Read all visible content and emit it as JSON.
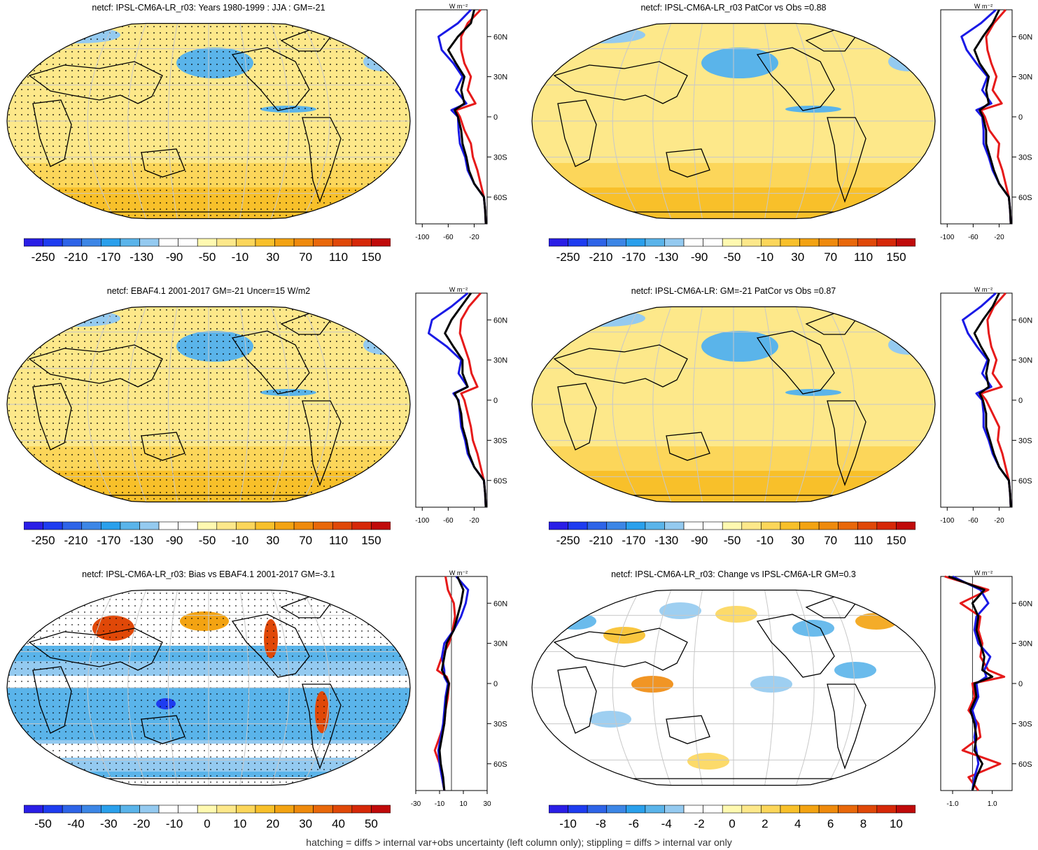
{
  "footnote": "hatching = diffs > internal var+obs uncertainty (left column only); stippling = diffs > internal var only",
  "colors": {
    "model": "#000000",
    "model_alt": "#1a1ae6",
    "obs": "#e61a1a",
    "land_outline": "#000000",
    "graticule": "#c8c8c8"
  },
  "zonal_unit": "W m⁻²",
  "lat_ticks": [
    "60N",
    "30N",
    "0",
    "30S",
    "60S"
  ],
  "chart_data": [
    {
      "type": "heatmap",
      "title": "netcf: IPSL-CM6A-LR_r03: Years 1980-1999 : JJA : GM=-21",
      "colorbar": {
        "levels": [
          "-250",
          "-210",
          "-170",
          "-130",
          "-90",
          "-50",
          "-10",
          "30",
          "70",
          "110",
          "150"
        ]
      },
      "dominant_fill": "light yellow / orange (negative cloud forcing), blue patches in N Pacific and subpolar oceans",
      "zonal_profile": {
        "x_ticks": [
          "-100",
          "-60",
          "-20"
        ],
        "xlim": [
          -110,
          0
        ],
        "lat": [
          80,
          70,
          60,
          50,
          40,
          30,
          20,
          10,
          5,
          0,
          -10,
          -20,
          -30,
          -40,
          -50,
          -60,
          -70,
          -80
        ],
        "series": [
          {
            "color": "black",
            "values": [
              -20,
              -25,
              -45,
              -60,
              -48,
              -35,
              -40,
              -35,
              -50,
              -45,
              -40,
              -38,
              -32,
              -28,
              -20,
              -5,
              -3,
              -2
            ]
          },
          {
            "color": "blue",
            "values": [
              -25,
              -45,
              -75,
              -70,
              -52,
              -38,
              -48,
              -32,
              -55,
              -45,
              -44,
              -42,
              -34,
              -30,
              -20,
              -5,
              -3,
              -2
            ]
          },
          {
            "color": "red",
            "values": [
              -10,
              -30,
              -40,
              -40,
              -35,
              -25,
              -30,
              -18,
              -48,
              -42,
              -35,
              -25,
              -22,
              -15,
              -10,
              -5,
              -3,
              -2
            ]
          }
        ]
      }
    },
    {
      "type": "heatmap",
      "title": "netcf: IPSL-CM6A-LR_r03 PatCor vs Obs =0.88",
      "colorbar": {
        "levels": [
          "-250",
          "-210",
          "-170",
          "-130",
          "-90",
          "-50",
          "-10",
          "30",
          "70",
          "110",
          "150"
        ]
      },
      "dominant_fill": "light yellow with blue patches in N Pacific / N Atlantic",
      "zonal_profile": {
        "x_ticks": [
          "-100",
          "-60",
          "-20"
        ],
        "xlim": [
          -110,
          0
        ],
        "lat": [
          80,
          70,
          60,
          50,
          40,
          30,
          20,
          10,
          5,
          0,
          -10,
          -20,
          -30,
          -40,
          -50,
          -60,
          -70,
          -80
        ],
        "series": [
          {
            "color": "black",
            "values": [
              -20,
              -30,
              -45,
              -58,
              -50,
              -36,
              -40,
              -36,
              -50,
              -45,
              -40,
              -40,
              -34,
              -28,
              -20,
              -5,
              -3,
              -2
            ]
          },
          {
            "color": "blue",
            "values": [
              -25,
              -48,
              -78,
              -70,
              -55,
              -38,
              -46,
              -32,
              -55,
              -46,
              -44,
              -44,
              -36,
              -30,
              -20,
              -5,
              -3,
              -2
            ]
          },
          {
            "color": "red",
            "values": [
              -10,
              -28,
              -40,
              -38,
              -32,
              -24,
              -30,
              -16,
              -48,
              -42,
              -35,
              -20,
              -22,
              -15,
              -10,
              -5,
              -3,
              -2
            ]
          }
        ]
      }
    },
    {
      "type": "heatmap",
      "title": "netcf: EBAF4.1 2001-2017 GM=-21 Uncer=15 W/m2",
      "colorbar": {
        "levels": [
          "-250",
          "-210",
          "-170",
          "-130",
          "-90",
          "-50",
          "-10",
          "30",
          "70",
          "110",
          "150"
        ]
      },
      "dominant_fill": "light yellow / orange with blue patches in N Pacific",
      "zonal_profile": {
        "x_ticks": [
          "-100",
          "-60",
          "-20"
        ],
        "xlim": [
          -110,
          0
        ],
        "lat": [
          80,
          70,
          60,
          50,
          40,
          30,
          20,
          10,
          5,
          0,
          -10,
          -20,
          -30,
          -40,
          -50,
          -60,
          -70,
          -80
        ],
        "series": [
          {
            "color": "black",
            "values": [
              -25,
              -40,
              -55,
              -65,
              -52,
              -38,
              -38,
              -30,
              -50,
              -45,
              -40,
              -38,
              -32,
              -28,
              -20,
              -5,
              -3,
              -2
            ]
          },
          {
            "color": "blue",
            "values": [
              -30,
              -55,
              -85,
              -90,
              -62,
              -40,
              -44,
              -30,
              -52,
              -44,
              -42,
              -40,
              -34,
              -30,
              -20,
              -5,
              -3,
              -2
            ]
          },
          {
            "color": "red",
            "values": [
              -10,
              -28,
              -40,
              -42,
              -35,
              -28,
              -24,
              -15,
              -40,
              -35,
              -30,
              -25,
              -22,
              -15,
              -10,
              -5,
              -3,
              -2
            ]
          }
        ]
      }
    },
    {
      "type": "heatmap",
      "title": "netcf: IPSL-CM6A-LR: GM=-21 PatCor vs Obs =0.87",
      "colorbar": {
        "levels": [
          "-250",
          "-210",
          "-170",
          "-130",
          "-90",
          "-50",
          "-10",
          "30",
          "70",
          "110",
          "150"
        ]
      },
      "dominant_fill": "light yellow with blue patches in N Pacific",
      "zonal_profile": {
        "x_ticks": [
          "-100",
          "-60",
          "-20"
        ],
        "xlim": [
          -110,
          0
        ],
        "lat": [
          80,
          70,
          60,
          50,
          40,
          30,
          20,
          10,
          5,
          0,
          -10,
          -20,
          -30,
          -40,
          -50,
          -60,
          -70,
          -80
        ],
        "series": [
          {
            "color": "black",
            "values": [
              -20,
              -30,
              -45,
              -58,
              -48,
              -36,
              -40,
              -36,
              -50,
              -45,
              -40,
              -40,
              -34,
              -28,
              -20,
              -5,
              -3,
              -2
            ]
          },
          {
            "color": "blue",
            "values": [
              -25,
              -48,
              -76,
              -68,
              -54,
              -38,
              -46,
              -32,
              -55,
              -46,
              -44,
              -44,
              -36,
              -30,
              -20,
              -5,
              -3,
              -2
            ]
          },
          {
            "color": "red",
            "values": [
              -10,
              -28,
              -38,
              -36,
              -32,
              -24,
              -30,
              -16,
              -48,
              -40,
              -30,
              -20,
              -22,
              -15,
              -10,
              -5,
              -3,
              -2
            ]
          }
        ]
      }
    },
    {
      "type": "heatmap",
      "title": "netcf: IPSL-CM6A-LR_r03: Bias vs EBAF4.1 2001-2017 GM=-3.1",
      "colorbar": {
        "levels": [
          "-50",
          "-40",
          "-30",
          "-20",
          "-10",
          "0",
          "10",
          "20",
          "30",
          "40",
          "50"
        ]
      },
      "dominant_fill": "blue bands over tropical and subtropical oceans, white bands between, red/orange patches over East Asia, NE Pacific and Peru coast",
      "zonal_profile": {
        "x_ticks": [
          "-30",
          "-10",
          "10",
          "30"
        ],
        "xlim": [
          -30,
          30
        ],
        "lat": [
          80,
          70,
          60,
          50,
          40,
          30,
          20,
          10,
          5,
          0,
          -10,
          -20,
          -30,
          -40,
          -50,
          -60,
          -70,
          -80
        ],
        "series": [
          {
            "color": "black",
            "values": [
              5,
              10,
              8,
              5,
              2,
              -4,
              -6,
              -8,
              -5,
              -2,
              -4,
              -5,
              -6,
              -8,
              -10,
              -9,
              -7,
              -6
            ]
          },
          {
            "color": "blue",
            "values": [
              4,
              14,
              12,
              8,
              2,
              -6,
              -8,
              -6,
              -6,
              -3,
              -5,
              -6,
              -7,
              -9,
              -11,
              -10,
              -8,
              -6
            ]
          },
          {
            "color": "red",
            "values": [
              -5,
              -3,
              2,
              3,
              1,
              -2,
              -8,
              -12,
              -4,
              -2,
              -3,
              -5,
              -6,
              -10,
              -14,
              -10,
              -8,
              -6
            ]
          }
        ]
      }
    },
    {
      "type": "heatmap",
      "title": "netcf: IPSL-CM6A-LR_r03: Change vs IPSL-CM6A-LR GM=0.3",
      "colorbar": {
        "levels": [
          "-10",
          "-8",
          "-6",
          "-4",
          "-2",
          "0",
          "2",
          "4",
          "6",
          "8",
          "10"
        ]
      },
      "dominant_fill": "mostly white with scattered blue and orange patches",
      "zonal_profile": {
        "x_ticks": [
          "-1.0",
          "1.0"
        ],
        "xlim": [
          -1.6,
          2.0
        ],
        "lat": [
          80,
          70,
          60,
          50,
          40,
          30,
          20,
          10,
          5,
          0,
          -10,
          -20,
          -30,
          -40,
          -50,
          -60,
          -70,
          -80
        ],
        "series": [
          {
            "color": "black",
            "values": [
              -1.2,
              0.6,
              0.0,
              0.3,
              0.2,
              0.4,
              0.6,
              0.5,
              1.0,
              0.1,
              0.2,
              -0.1,
              0.1,
              0.2,
              0.1,
              0.5,
              0.2,
              0.0
            ]
          },
          {
            "color": "blue",
            "values": [
              -1.0,
              0.4,
              0.8,
              0.2,
              0.1,
              0.3,
              0.9,
              0.6,
              0.7,
              0.2,
              0.3,
              0.0,
              0.2,
              0.1,
              0.2,
              0.3,
              0.1,
              0.0
            ]
          },
          {
            "color": "red",
            "values": [
              -1.4,
              0.8,
              -0.6,
              0.4,
              0.3,
              0.5,
              0.4,
              0.8,
              1.6,
              0.0,
              0.1,
              -0.2,
              0.3,
              0.4,
              -0.5,
              1.4,
              -0.2,
              0.3
            ]
          }
        ]
      }
    }
  ]
}
